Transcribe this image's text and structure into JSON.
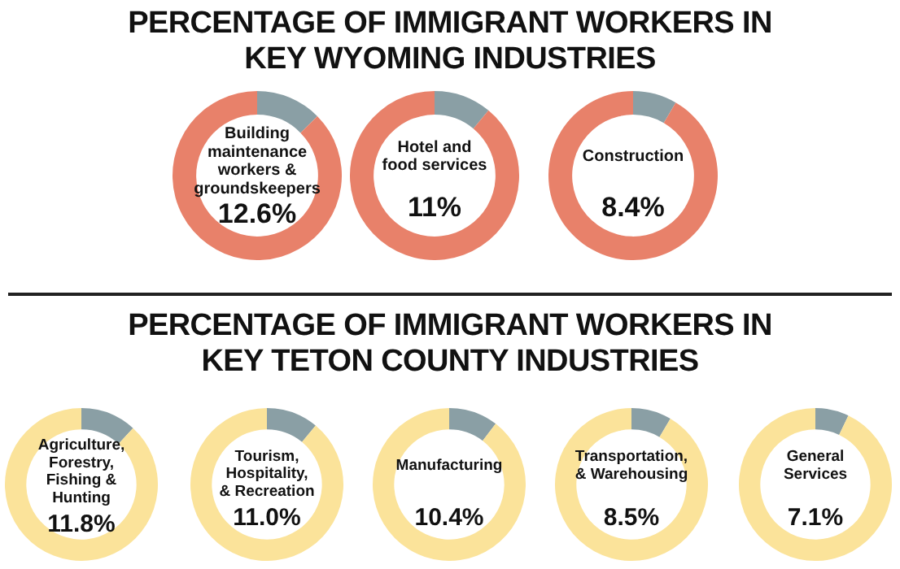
{
  "chart_data": [
    {
      "type": "other",
      "title": "PERCENTAGE OF IMMIGRANT WORKERS IN KEY WYOMING INDUSTRIES"
    },
    {
      "type": "donut",
      "title": "Building maintenance workers & groundskeepers",
      "categories": [
        null,
        null
      ],
      "values": [
        12.6,
        87.4
      ],
      "colors": [
        "#8a9fa5",
        "#e8816a"
      ],
      "annotations": [
        "12.6%"
      ]
    },
    {
      "type": "donut",
      "title": "Hotel and food services",
      "categories": [
        null,
        null
      ],
      "values": [
        11,
        89
      ],
      "colors": [
        "#8a9fa5",
        "#e8816a"
      ],
      "annotations": [
        "11%"
      ]
    },
    {
      "type": "donut",
      "title": "Construction",
      "categories": [
        null,
        null
      ],
      "values": [
        8.4,
        91.6
      ],
      "colors": [
        "#8a9fa5",
        "#e8816a"
      ],
      "annotations": [
        "8.4%"
      ]
    },
    {
      "type": "other",
      "title": "PERCENTAGE OF IMMIGRANT WORKERS IN KEY TETON COUNTY INDUSTRIES"
    },
    {
      "type": "donut",
      "title": "Agriculture, Forestry, Fishing & Hunting",
      "categories": [
        null,
        null
      ],
      "values": [
        11.8,
        88.2
      ],
      "colors": [
        "#8a9fa5",
        "#fbe39a"
      ],
      "annotations": [
        "11.8%"
      ]
    },
    {
      "type": "donut",
      "title": "Tourism, Hospitality, & Recreation",
      "categories": [
        null,
        null
      ],
      "values": [
        11.0,
        89.0
      ],
      "colors": [
        "#8a9fa5",
        "#fbe39a"
      ],
      "annotations": [
        "11.0%"
      ]
    },
    {
      "type": "donut",
      "title": "Manufacturing",
      "categories": [
        null,
        null
      ],
      "values": [
        10.4,
        89.6
      ],
      "colors": [
        "#8a9fa5",
        "#fbe39a"
      ],
      "annotations": [
        "10.4%"
      ]
    },
    {
      "type": "donut",
      "title": "Transportation, & Warehousing",
      "categories": [
        null,
        null
      ],
      "values": [
        8.5,
        91.5
      ],
      "colors": [
        "#8a9fa5",
        "#fbe39a"
      ],
      "annotations": [
        "8.5%"
      ]
    },
    {
      "type": "donut",
      "title": "General Services",
      "categories": [
        null,
        null
      ],
      "values": [
        7.1,
        92.9
      ],
      "colors": [
        "#8a9fa5",
        "#fbe39a"
      ],
      "annotations": [
        "7.1%"
      ]
    }
  ]
}
